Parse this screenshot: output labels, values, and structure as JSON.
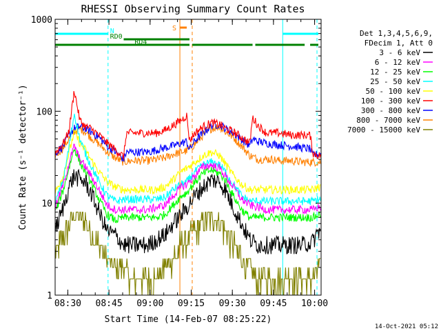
{
  "chart_data": {
    "type": "line",
    "title": "RHESSI Observing Summary Count Rates",
    "xlabel": "Start Time (14-Feb-07 08:25:22)",
    "ylabel": "Count Rate (s⁻¹ detector⁻¹)",
    "yscale": "log",
    "ylim": [
      1,
      1000
    ],
    "xlim_minutes": [
      0,
      97
    ],
    "ytick_values": [
      1,
      10,
      100,
      1000
    ],
    "ytick_labels": [
      "1",
      "10",
      "100",
      "1000"
    ],
    "xtick_minutes": [
      4.63,
      19.63,
      34.63,
      49.63,
      64.63,
      79.63,
      94.63
    ],
    "xtick_labels": [
      "08:30",
      "08:45",
      "09:00",
      "09:15",
      "09:30",
      "09:45",
      "10:00"
    ],
    "legend_header": [
      "Det 1,3,4,5,6,9,",
      "FDecim 1, Att 0"
    ],
    "legend_position": "right",
    "footer_date": "14-Oct-2021 05:12",
    "series": [
      {
        "name": "3 - 6 keV",
        "color": "#000000",
        "x": [
          0,
          3,
          5,
          7,
          9,
          11,
          13,
          16,
          19,
          22,
          25,
          28,
          31,
          34,
          37,
          40,
          43,
          46,
          48,
          51,
          54,
          57,
          60,
          62,
          65,
          68,
          71,
          74,
          77,
          79,
          82,
          86,
          90,
          94,
          96
        ],
        "y": [
          5,
          9,
          15,
          20,
          18,
          17,
          13,
          8,
          5,
          4.5,
          3.5,
          3.5,
          3.5,
          3.5,
          4,
          4.5,
          6,
          7.5,
          9,
          12,
          15,
          18,
          17,
          14,
          9,
          6,
          4,
          3.5,
          3.5,
          3.5,
          3.5,
          3.5,
          3.5,
          3.8,
          5
        ]
      },
      {
        "name": "6 - 12 keV",
        "color": "#ff00ff",
        "x": [
          0,
          3,
          5,
          7,
          9,
          11,
          13,
          16,
          19,
          22,
          25,
          28,
          31,
          34,
          37,
          40,
          43,
          46,
          48,
          51,
          54,
          57,
          60,
          62,
          65,
          68,
          71,
          74,
          77,
          79,
          82,
          86,
          90,
          94,
          96
        ],
        "y": [
          9,
          16,
          27,
          42,
          30,
          25,
          20,
          14,
          9.5,
          8.5,
          8.5,
          8.5,
          8.5,
          8.5,
          9,
          9.5,
          12,
          15,
          16,
          20,
          25,
          26,
          24,
          20,
          15,
          11,
          9.5,
          9,
          8.5,
          8.5,
          8.5,
          8.5,
          8.5,
          8.5,
          9
        ]
      },
      {
        "name": "12 - 25 keV",
        "color": "#00ff00",
        "x": [
          0,
          3,
          5,
          7,
          9,
          11,
          13,
          16,
          19,
          22,
          25,
          28,
          31,
          34,
          37,
          40,
          43,
          46,
          48,
          51,
          54,
          57,
          60,
          62,
          65,
          68,
          71,
          74,
          77,
          79,
          82,
          86,
          90,
          94,
          96
        ],
        "y": [
          8,
          14,
          24,
          40,
          28,
          22,
          17,
          11,
          7.5,
          6.5,
          7,
          7,
          7,
          7,
          7,
          7.5,
          9.5,
          12,
          13,
          17,
          21,
          23,
          21,
          18,
          12,
          8.5,
          7,
          7,
          7,
          7,
          7,
          7,
          7,
          7,
          7.5
        ]
      },
      {
        "name": "25 - 50 keV",
        "color": "#00ffff",
        "x": [
          0,
          3,
          5,
          7,
          9,
          11,
          13,
          16,
          19,
          22,
          25,
          28,
          31,
          34,
          37,
          40,
          43,
          46,
          48,
          51,
          54,
          57,
          60,
          62,
          65,
          68,
          71,
          74,
          77,
          79,
          82,
          86,
          90,
          94,
          96
        ],
        "y": [
          10,
          18,
          40,
          95,
          50,
          35,
          26,
          17,
          12,
          10.5,
          11,
          11,
          11,
          11,
          11,
          11.5,
          14,
          16,
          17,
          22,
          26,
          28,
          26,
          22,
          16,
          12,
          10.5,
          10.5,
          10.5,
          10.5,
          10.5,
          10.5,
          10.5,
          10.5,
          11
        ]
      },
      {
        "name": "50 - 100 keV",
        "color": "#ffff00",
        "x": [
          0,
          3,
          5,
          7,
          9,
          11,
          13,
          16,
          19,
          22,
          25,
          28,
          31,
          34,
          37,
          40,
          43,
          46,
          48,
          51,
          54,
          57,
          60,
          62,
          65,
          68,
          71,
          74,
          77,
          79,
          82,
          86,
          90,
          94,
          96
        ],
        "y": [
          13,
          20,
          35,
          60,
          45,
          38,
          30,
          22,
          17,
          15,
          14,
          14,
          14,
          14,
          14,
          15,
          18,
          22,
          24,
          28,
          33,
          36,
          33,
          27,
          20,
          16,
          14,
          14,
          14,
          14,
          14,
          14,
          14,
          14,
          15
        ]
      },
      {
        "name": "100 - 300 keV",
        "color": "#ff0000",
        "x": [
          0,
          3,
          5,
          7,
          9,
          11,
          13,
          16,
          19,
          22,
          25,
          26,
          28,
          31,
          34,
          37,
          40,
          43,
          46,
          48,
          49,
          51,
          54,
          57,
          60,
          62,
          65,
          71,
          72,
          74,
          77,
          79,
          82,
          86,
          90,
          93,
          94,
          96
        ],
        "y": [
          35,
          45,
          60,
          170,
          80,
          68,
          65,
          55,
          45,
          38,
          32,
          58,
          58,
          58,
          58,
          58,
          62,
          70,
          80,
          90,
          48,
          58,
          68,
          75,
          72,
          65,
          60,
          45,
          85,
          70,
          58,
          58,
          58,
          55,
          55,
          55,
          35,
          33
        ]
      },
      {
        "name": "300 - 800 keV",
        "color": "#0000ff",
        "x": [
          0,
          3,
          5,
          7,
          9,
          11,
          13,
          16,
          19,
          22,
          25,
          26,
          28,
          31,
          34,
          37,
          40,
          43,
          46,
          48,
          49,
          51,
          54,
          57,
          60,
          62,
          65,
          71,
          72,
          74,
          77,
          79,
          82,
          86,
          90,
          93,
          94,
          96
        ],
        "y": [
          35,
          42,
          55,
          65,
          68,
          65,
          60,
          52,
          42,
          36,
          30,
          36,
          36,
          36,
          36,
          38,
          40,
          42,
          45,
          47,
          38,
          48,
          58,
          70,
          72,
          65,
          58,
          42,
          50,
          47,
          45,
          44,
          43,
          42,
          40,
          39,
          33,
          34
        ]
      },
      {
        "name": "800 - 7000 keV",
        "color": "#ff8000",
        "x": [
          0,
          3,
          5,
          7,
          9,
          11,
          13,
          16,
          19,
          22,
          25,
          28,
          31,
          34,
          37,
          40,
          43,
          46,
          48,
          51,
          54,
          57,
          60,
          62,
          65,
          68,
          71,
          74,
          77,
          79,
          82,
          86,
          90,
          94,
          96
        ],
        "y": [
          33,
          40,
          50,
          60,
          65,
          60,
          52,
          44,
          36,
          31,
          28,
          29,
          29,
          29,
          30,
          31,
          34,
          36,
          37,
          44,
          55,
          65,
          68,
          60,
          52,
          42,
          33,
          30,
          30,
          30,
          29,
          29,
          28,
          28,
          28
        ]
      },
      {
        "name": "7000 - 15000 keV",
        "color": "#808000",
        "x": [
          0,
          3,
          5,
          7,
          9,
          11,
          13,
          16,
          19,
          22,
          25,
          28,
          31,
          34,
          37,
          40,
          43,
          46,
          48,
          51,
          54,
          57,
          60,
          62,
          65,
          68,
          71,
          74,
          77,
          79,
          82,
          86,
          90,
          94,
          96
        ],
        "y": [
          3,
          4,
          6,
          8,
          7,
          6.5,
          5,
          3.5,
          2.5,
          2,
          2,
          1.5,
          1.5,
          1.5,
          1.5,
          2,
          2.5,
          3.5,
          4,
          5,
          6,
          7,
          6.5,
          5,
          3.5,
          2.5,
          2,
          1.5,
          1.5,
          1.5,
          1.5,
          1.5,
          1.5,
          1.5,
          2
        ]
      }
    ],
    "flags": [
      {
        "label": "N",
        "color": "#00ffff",
        "level": 1,
        "segments": [
          [
            0,
            19.3
          ],
          [
            83,
            96
          ]
        ]
      },
      {
        "label": "RD0",
        "color": "#008000",
        "level": 2,
        "segments": [
          [
            25,
            49
          ]
        ]
      },
      {
        "label": "RD4",
        "color": "#008000",
        "level": 3,
        "segments": [
          [
            0,
            49
          ],
          [
            50,
            72
          ],
          [
            73,
            91
          ],
          [
            93,
            96
          ]
        ]
      },
      {
        "label": "S",
        "color": "#ff8000",
        "level": 0,
        "segments": [
          [
            45.5,
            48
          ]
        ]
      }
    ],
    "vlines": [
      {
        "minute": 0,
        "color": "#00ffff",
        "dashed": false
      },
      {
        "minute": 19.3,
        "color": "#00ffff",
        "dashed": true
      },
      {
        "minute": 45.5,
        "color": "#ff8000",
        "dashed": false
      },
      {
        "minute": 50,
        "color": "#ff8000",
        "dashed": true
      },
      {
        "minute": 83,
        "color": "#00ffff",
        "dashed": false
      },
      {
        "minute": 95.5,
        "color": "#00ffff",
        "dashed": true
      }
    ]
  }
}
